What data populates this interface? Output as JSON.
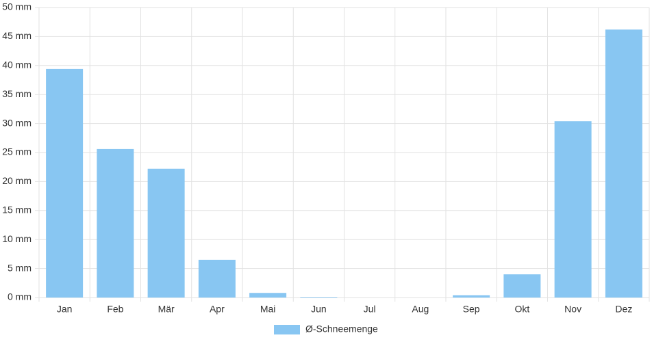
{
  "chart_data": {
    "type": "bar",
    "categories": [
      "Jan",
      "Feb",
      "Mär",
      "Apr",
      "Mai",
      "Jun",
      "Jul",
      "Aug",
      "Sep",
      "Okt",
      "Nov",
      "Dez"
    ],
    "series": [
      {
        "name": "Ø-Schneemenge",
        "color": "#88c6f2",
        "values": [
          39.4,
          25.6,
          22.2,
          6.5,
          0.8,
          0.1,
          0,
          0,
          0.4,
          4.0,
          30.4,
          46.2
        ]
      }
    ],
    "ylim": [
      0,
      50
    ],
    "yticks": [
      {
        "value": 0,
        "label": "0 mm"
      },
      {
        "value": 5,
        "label": "5 mm"
      },
      {
        "value": 10,
        "label": "10 mm"
      },
      {
        "value": 15,
        "label": "15 mm"
      },
      {
        "value": 20,
        "label": "20 mm"
      },
      {
        "value": 25,
        "label": "25 mm"
      },
      {
        "value": 30,
        "label": "30 mm"
      },
      {
        "value": 35,
        "label": "35 mm"
      },
      {
        "value": 40,
        "label": "40 mm"
      },
      {
        "value": 45,
        "label": "45 mm"
      },
      {
        "value": 50,
        "label": "50 mm"
      }
    ],
    "grid": true,
    "legend": "bottom"
  }
}
